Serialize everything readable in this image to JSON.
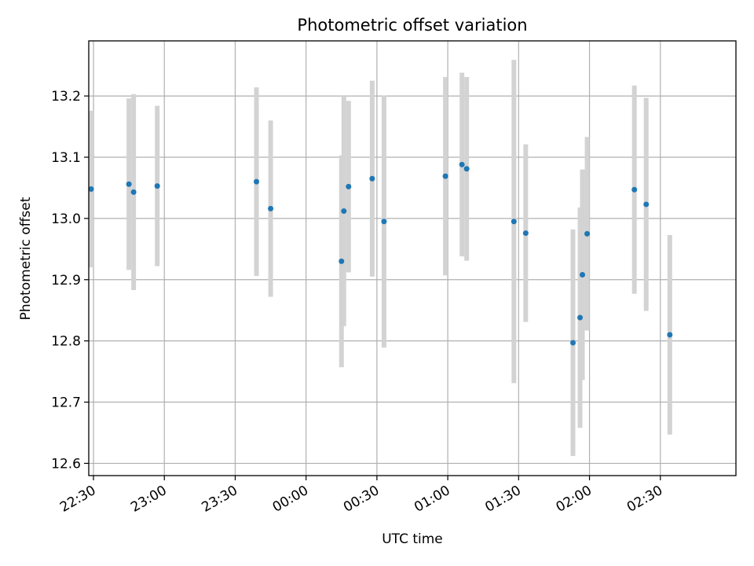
{
  "chart_data": {
    "type": "scatter",
    "title": "Photometric offset variation",
    "xlabel": "UTC time",
    "ylabel": "Photometric offset",
    "xlim": [
      "22:28",
      "03:02"
    ],
    "ylim": [
      12.58,
      13.29
    ],
    "x_ticks": [
      "22:30",
      "23:00",
      "23:30",
      "00:00",
      "00:30",
      "01:00",
      "01:30",
      "02:00",
      "02:30"
    ],
    "y_ticks": [
      "12.6",
      "12.7",
      "12.8",
      "12.9",
      "13.0",
      "13.1",
      "13.2"
    ],
    "grid": true,
    "marker_color": "#1f77b4",
    "errorbar_color": "#d3d3d3",
    "points": [
      {
        "x": "22:29",
        "y": 13.048,
        "err": 0.128
      },
      {
        "x": "22:45",
        "y": 13.056,
        "err": 0.14
      },
      {
        "x": "22:47",
        "y": 13.043,
        "err": 0.16
      },
      {
        "x": "22:57",
        "y": 13.053,
        "err": 0.131
      },
      {
        "x": "23:39",
        "y": 13.06,
        "err": 0.154
      },
      {
        "x": "23:45",
        "y": 13.016,
        "err": 0.144
      },
      {
        "x": "00:15",
        "y": 12.93,
        "err": 0.173
      },
      {
        "x": "00:16",
        "y": 13.012,
        "err": 0.188
      },
      {
        "x": "00:18",
        "y": 13.052,
        "err": 0.14
      },
      {
        "x": "00:28",
        "y": 13.065,
        "err": 0.16
      },
      {
        "x": "00:33",
        "y": 12.995,
        "err": 0.206
      },
      {
        "x": "00:59",
        "y": 13.069,
        "err": 0.162
      },
      {
        "x": "01:06",
        "y": 13.088,
        "err": 0.15
      },
      {
        "x": "01:08",
        "y": 13.081,
        "err": 0.15
      },
      {
        "x": "01:28",
        "y": 12.995,
        "err": 0.264
      },
      {
        "x": "01:33",
        "y": 12.976,
        "err": 0.145
      },
      {
        "x": "01:53",
        "y": 12.797,
        "err": 0.185
      },
      {
        "x": "01:56",
        "y": 12.838,
        "err": 0.18
      },
      {
        "x": "01:57",
        "y": 12.908,
        "err": 0.172
      },
      {
        "x": "01:59",
        "y": 12.975,
        "err": 0.158
      },
      {
        "x": "02:19",
        "y": 13.047,
        "err": 0.17
      },
      {
        "x": "02:24",
        "y": 13.023,
        "err": 0.174
      },
      {
        "x": "02:34",
        "y": 12.81,
        "err": 0.163
      }
    ]
  }
}
